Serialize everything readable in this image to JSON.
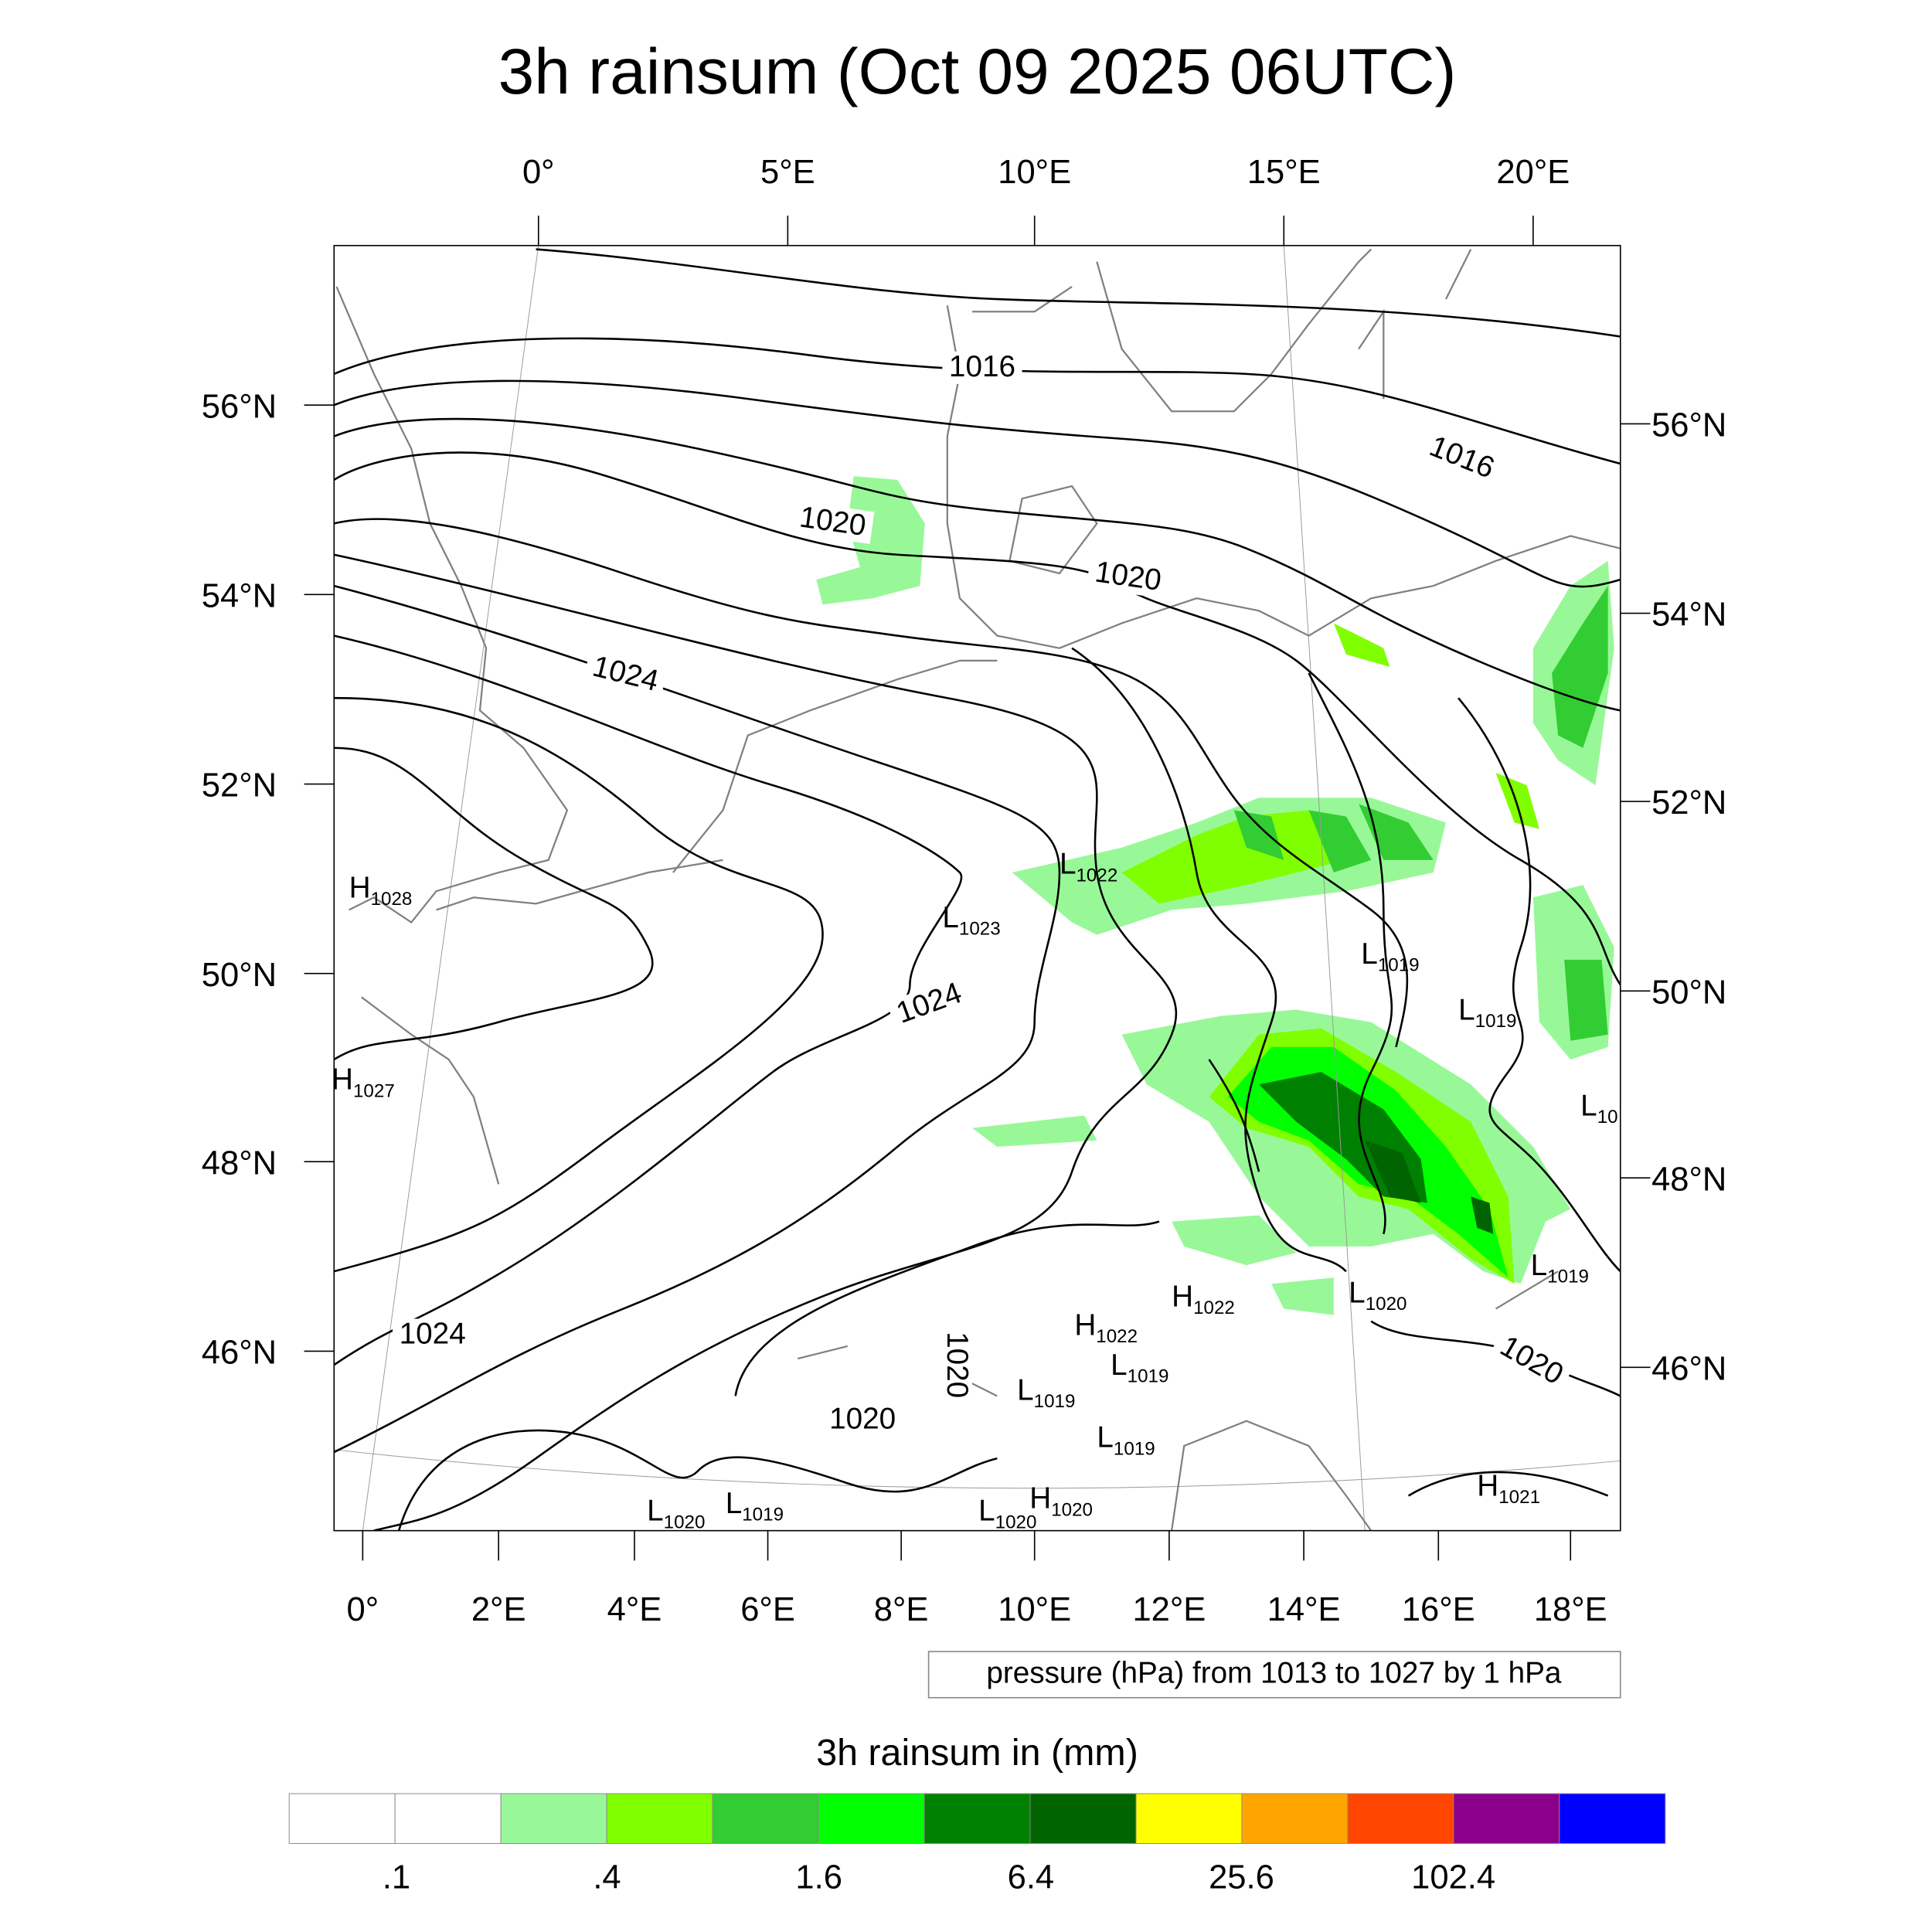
{
  "title": "3h rainsum (Oct 09 2025 06UTC)",
  "axes": {
    "top_lon": [
      "0°",
      "5°E",
      "10°E",
      "15°E",
      "20°E"
    ],
    "bottom_lon": [
      "0°",
      "2°E",
      "4°E",
      "6°E",
      "8°E",
      "10°E",
      "12°E",
      "14°E",
      "16°E",
      "18°E"
    ],
    "left_lat": [
      "56°N",
      "54°N",
      "52°N",
      "50°N",
      "48°N",
      "46°N"
    ],
    "right_lat": [
      "56°N",
      "54°N",
      "52°N",
      "50°N",
      "48°N",
      "46°N"
    ]
  },
  "isobar_labels": [
    "1016",
    "1016",
    "1020",
    "1020",
    "1024",
    "1024",
    "1024",
    "1020",
    "1020",
    "1020"
  ],
  "pressure_centers": [
    {
      "type": "H",
      "value": "1028"
    },
    {
      "type": "H",
      "value": "1027"
    },
    {
      "type": "L",
      "value": "1023"
    },
    {
      "type": "L",
      "value": "1022"
    },
    {
      "type": "L",
      "value": "1019"
    },
    {
      "type": "L",
      "value": "1019"
    },
    {
      "type": "L",
      "value": "10"
    },
    {
      "type": "L",
      "value": "1019"
    },
    {
      "type": "L",
      "value": "1020"
    },
    {
      "type": "H",
      "value": "1022"
    },
    {
      "type": "H",
      "value": "1022"
    },
    {
      "type": "L",
      "value": "1019"
    },
    {
      "type": "L",
      "value": "1019"
    },
    {
      "type": "L",
      "value": "1019"
    },
    {
      "type": "L",
      "value": "1020"
    },
    {
      "type": "L",
      "value": "1019"
    },
    {
      "type": "L",
      "value": "1020"
    },
    {
      "type": "H",
      "value": "1020"
    },
    {
      "type": "H",
      "value": "1021"
    }
  ],
  "contour_legend": "pressure (hPa) from 1013 to 1027 by 1 hPa",
  "colorbar": {
    "title": "3h rainsum in (mm)",
    "colors": [
      "#ffffff",
      "#ffffff",
      "#98f898",
      "#80ff00",
      "#32cd32",
      "#00ff00",
      "#008000",
      "#006400",
      "#ffff00",
      "#ffa500",
      "#ff4500",
      "#8b008b",
      "#0000ff"
    ],
    "tick_labels": [
      ".1",
      ".4",
      "1.6",
      "6.4",
      "25.6",
      "102.4"
    ]
  },
  "rain_colors": {
    "light": "#98f898",
    "lime": "#80ff00",
    "mid": "#32cd32",
    "bright": "#00ff00",
    "green": "#008000",
    "dark": "#006400"
  }
}
